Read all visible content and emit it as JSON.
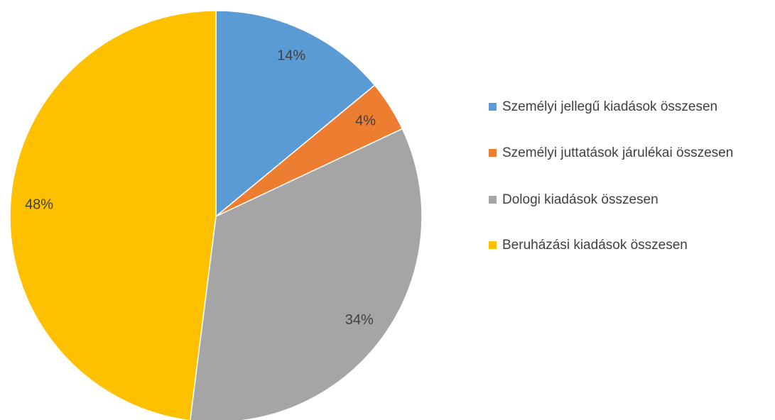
{
  "chart_data": {
    "type": "pie",
    "categories": [
      "Személyi jellegű kiadások összesen",
      "Személyi juttatások járulékai összesen",
      "Dologi kiadások összesen",
      "Beruházási kiadások összesen"
    ],
    "values": [
      14,
      4,
      34,
      48
    ],
    "value_labels": [
      "14%",
      "4%",
      "34%",
      "48%"
    ],
    "colors": [
      "#5b9bd5",
      "#ed7d31",
      "#a5a5a5",
      "#ffc000"
    ],
    "legend": "right"
  }
}
